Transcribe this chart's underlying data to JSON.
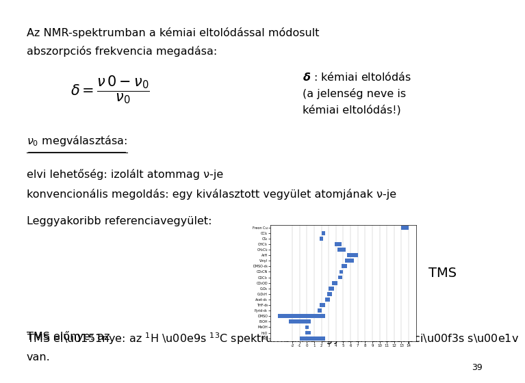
{
  "bg_color": "#ffffff",
  "title_line1": "Az NMR-spektrumban a kémiai eltolódással módosult",
  "title_line2": "abszorpciós frekvencia megadása:",
  "delta_label_line1": "δ : kémiai eltolódás",
  "delta_label_line2": "(a jelenség neve is",
  "delta_label_line3": "kémiai eltolódás!)",
  "nu0_line": "ν₀ megválasztása:",
  "line3": "elvi lehetőség: izolált atommag ν-je",
  "line4": "konvencionális megoldás: egy kiválasztott vegyület atomjának ν-je",
  "line5": "Leggyakoribb referenciavegyület:",
  "tms_label": "TMS",
  "last_line1": "TMS előnye: az ¹H és ¹³C spektrumban is egyetlen abszorpciós sáv",
  "last_line2": "van.",
  "page_num": "39",
  "text_color": "#000000",
  "chart_bar_color": "#4472c4",
  "bar_labels": [
    "Freon C₁₄",
    "CCl₄",
    "CS₂",
    "CHCl₃",
    "CH₂Cl₂",
    "ArH",
    "Vinyl",
    "DMSO-d₆",
    "CD₃CN",
    "CDCl₃",
    "CD₃OD",
    "C₆D₆",
    "C₆D₅H",
    "Acet-d₆",
    "THF-d₈",
    "Pyrid-d₅",
    "DMSO",
    "EtOH",
    "MeOH",
    "H₂O",
    "TMS"
  ],
  "bar_xmins": [
    13.0,
    2.0,
    1.8,
    3.8,
    4.2,
    5.5,
    5.2,
    4.8,
    4.5,
    4.3,
    3.5,
    3.0,
    2.8,
    2.5,
    1.8,
    1.5,
    -4.0,
    -2.5,
    -0.2,
    -0.2,
    -1.0
  ],
  "bar_xmaxs": [
    14.0,
    2.5,
    2.2,
    4.8,
    5.3,
    7.0,
    6.5,
    5.5,
    5.0,
    4.9,
    4.2,
    3.7,
    3.5,
    3.2,
    2.5,
    2.0,
    2.5,
    0.5,
    0.3,
    0.5,
    2.5
  ],
  "chart_xlim": [
    -5,
    15
  ],
  "chart_xticks": [
    -2,
    -1,
    0,
    1,
    2,
    3,
    4,
    5,
    6,
    7,
    8,
    9,
    10,
    11,
    12,
    13,
    14
  ]
}
